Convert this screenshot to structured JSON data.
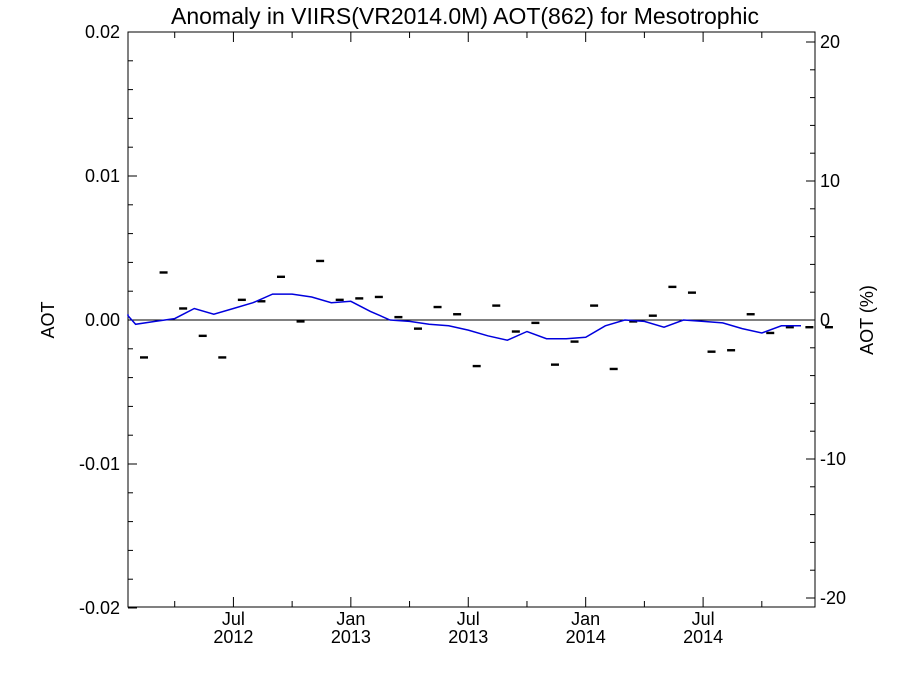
{
  "chart_data": {
    "type": "line",
    "title": "Anomaly in VIIRS(VR2014.0M) AOT(862) for Mesotrophic",
    "ylabel_left": "AOT",
    "ylabel_right": "AOT (%)",
    "xlabel": "",
    "x_range": [
      "2012-01",
      "2014-12"
    ],
    "ylim_left": [
      -0.02,
      0.02
    ],
    "ylim_right": [
      -20.5,
      20.5
    ],
    "y_ticks_left": [
      "0.02",
      "0.01",
      "0.00",
      "-0.01",
      "-0.02"
    ],
    "y_ticks_right": [
      "20",
      "10",
      "0",
      "-10",
      "-20"
    ],
    "x_ticks": [
      {
        "month": "Jul",
        "year": "2012",
        "date": "2012-07"
      },
      {
        "month": "Jan",
        "year": "2013",
        "date": "2013-01"
      },
      {
        "month": "Jul",
        "year": "2013",
        "date": "2013-07"
      },
      {
        "month": "Jan",
        "year": "2014",
        "date": "2014-01"
      },
      {
        "month": "Jul",
        "year": "2014",
        "date": "2014-07"
      }
    ],
    "zero_line": true,
    "grid": false,
    "series": [
      {
        "style": "dash-markers",
        "color": "#000000",
        "axis": "left",
        "x": [
          "2012-01",
          "2012-02",
          "2012-03",
          "2012-04",
          "2012-05",
          "2012-06",
          "2012-07",
          "2012-08",
          "2012-09",
          "2012-10",
          "2012-11",
          "2012-12",
          "2013-01",
          "2013-02",
          "2013-03",
          "2013-04",
          "2013-05",
          "2013-06",
          "2013-07",
          "2013-08",
          "2013-09",
          "2013-10",
          "2013-11",
          "2013-12",
          "2014-01",
          "2014-02",
          "2014-03",
          "2014-04",
          "2014-05",
          "2014-06",
          "2014-07",
          "2014-08",
          "2014-09",
          "2014-10",
          "2014-11",
          "2014-12"
        ],
        "y": [
          -0.0026,
          0.0033,
          0.0008,
          -0.0011,
          -0.0026,
          0.0014,
          0.0013,
          0.003,
          -0.0001,
          0.0041,
          0.0014,
          0.0015,
          0.0016,
          0.0002,
          -0.0006,
          0.0009,
          0.0004,
          -0.0032,
          0.001,
          -0.0008,
          -0.0002,
          -0.0031,
          -0.0015,
          0.001,
          -0.0034,
          -0.0001,
          0.0003,
          0.0023,
          0.0019,
          -0.0022,
          -0.0021,
          0.0004,
          -0.0009,
          -0.0005,
          -0.0005,
          -0.0005
        ]
      },
      {
        "style": "line",
        "color": "#0000dd",
        "axis": "left",
        "x": [
          "2011-12",
          "2012-01",
          "2012-02",
          "2012-03",
          "2012-04",
          "2012-05",
          "2012-06",
          "2012-07",
          "2012-08",
          "2012-09",
          "2012-10",
          "2012-11",
          "2012-12",
          "2013-01",
          "2013-02",
          "2013-03",
          "2013-04",
          "2013-05",
          "2013-06",
          "2013-07",
          "2013-08",
          "2013-09",
          "2013-10",
          "2013-11",
          "2013-12",
          "2014-01",
          "2014-02",
          "2014-03",
          "2014-04",
          "2014-05",
          "2014-06",
          "2014-07",
          "2014-08",
          "2014-09",
          "2014-10",
          "2014-11",
          "2014-12"
        ],
        "y": [
          0.0004,
          0.0003,
          -0.0003,
          -0.0001,
          0.0001,
          0.0008,
          0.0004,
          0.0008,
          0.0012,
          0.0018,
          0.0018,
          0.0016,
          0.0012,
          0.0013,
          0.0006,
          0.0,
          -0.0001,
          -0.0003,
          -0.0004,
          -0.0007,
          -0.0011,
          -0.0014,
          -0.0008,
          -0.0013,
          -0.0013,
          -0.0012,
          -0.0004,
          0.0,
          -0.0001,
          -0.0005,
          0.0,
          -0.0001,
          -0.0002,
          -0.0006,
          -0.0009,
          -0.0004,
          -0.0004
        ]
      }
    ]
  }
}
